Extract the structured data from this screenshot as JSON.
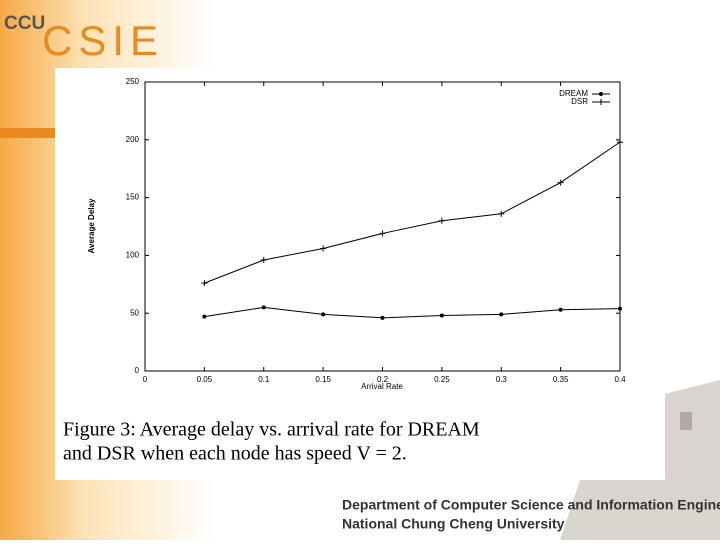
{
  "slide": {
    "logo_small": "CCU",
    "logo_big": "CSIE",
    "caption": [
      "Figure 3:  Average delay vs. arrival rate for DREAM",
      "and DSR when each node has speed V = 2."
    ],
    "footer": [
      "Department of Computer Science and Information Engineering",
      "National Chung Cheng University"
    ]
  },
  "chart_data": {
    "type": "line",
    "x_label": "Arrival Rate",
    "y_label": "Average Delay",
    "x": [
      0.05,
      0.1,
      0.15,
      0.2,
      0.25,
      0.3,
      0.35,
      0.4
    ],
    "series": [
      {
        "name": "DREAM",
        "color": "#000000",
        "marker": "dot",
        "values": [
          47,
          55,
          49,
          46,
          48,
          49,
          53,
          54
        ]
      },
      {
        "name": "DSR",
        "color": "#000000",
        "marker": "plus",
        "values": [
          76,
          96,
          106,
          119,
          130,
          136,
          163,
          198
        ]
      }
    ],
    "xlim": [
      0,
      0.4
    ],
    "xticks": [
      0,
      0.05,
      0.1,
      0.15,
      0.2,
      0.25,
      0.3,
      0.35,
      0.4
    ],
    "ylim": [
      0,
      250
    ],
    "yticks": [
      0,
      50,
      100,
      150,
      200,
      250
    ],
    "grid": false,
    "legend": "top-right"
  }
}
